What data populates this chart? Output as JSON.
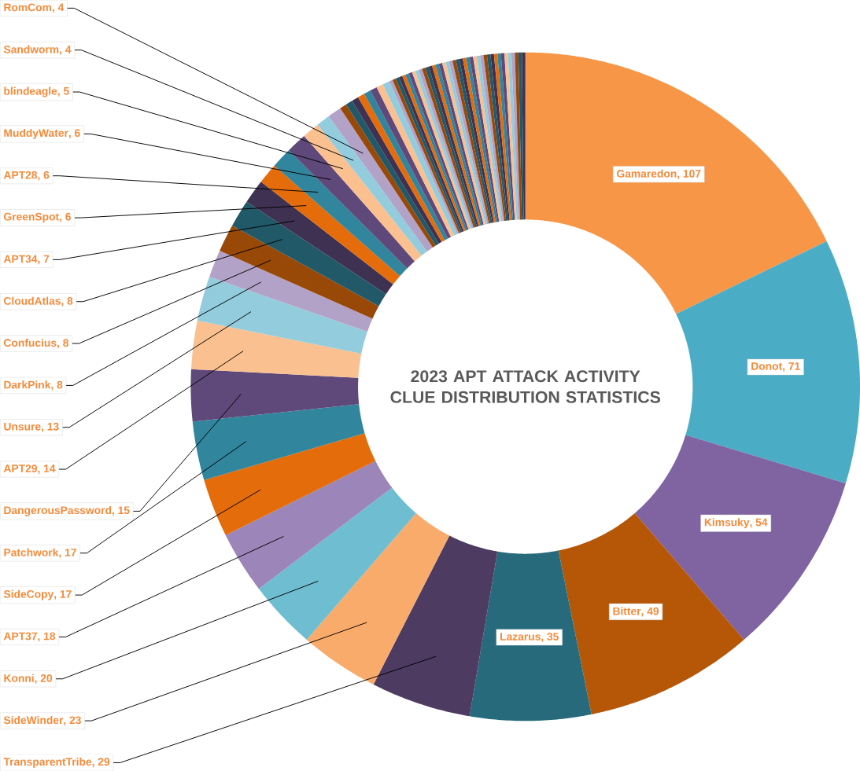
{
  "chart_data": {
    "type": "donut",
    "title": "2023 APT ATTACK ACTIVITY CLUE DISTRIBUTION STATISTICS",
    "categories": [
      "Gamaredon",
      "Donot",
      "Kimsuky",
      "Bitter",
      "Lazarus",
      "TransparentTribe",
      "SideWinder",
      "Konni",
      "APT37",
      "SideCopy",
      "Patchwork",
      "DangerousPassword",
      "APT29",
      "Unsure",
      "DarkPink",
      "Confucius",
      "CloudAtlas",
      "APT34",
      "GreenSpot",
      "APT28",
      "MuddyWater",
      "blindeagle",
      "Sandworm",
      "RomCom",
      null,
      null,
      null,
      null,
      null,
      null,
      null,
      null,
      null,
      null,
      null,
      null,
      null,
      null,
      null,
      null,
      null,
      null,
      null,
      null,
      null,
      null,
      null,
      null,
      null,
      null,
      null,
      null,
      null,
      null,
      null,
      null,
      null,
      null,
      null,
      null,
      null,
      null,
      null,
      null,
      null,
      null,
      null,
      null,
      null,
      null,
      null,
      null
    ],
    "values": [
      107,
      71,
      54,
      49,
      35,
      29,
      23,
      20,
      18,
      17,
      17,
      15,
      14,
      13,
      8,
      8,
      8,
      7,
      6,
      6,
      6,
      5,
      4,
      4,
      2,
      2,
      2,
      2,
      2,
      2,
      2,
      2,
      1,
      1,
      1,
      1,
      1,
      1,
      1,
      1,
      1,
      1,
      1,
      1,
      1,
      1,
      1,
      1,
      1,
      1,
      1,
      1,
      1,
      1,
      1,
      1,
      1,
      1,
      1,
      1,
      1,
      1,
      1,
      1,
      1,
      1,
      1,
      1,
      1,
      1,
      1,
      1
    ],
    "value_labels": [
      ", 107",
      ", 71",
      ", 54",
      ", 49",
      ", 35",
      ", 29",
      ", 23",
      ", 20",
      ", 18",
      ", 17",
      ", 17",
      ", 15",
      ", 14",
      ", 13",
      ", 8",
      ", 8",
      ", 8",
      ", 7",
      ", 6",
      ", 6",
      ", 6",
      ", 5",
      ", 4",
      ", 4",
      null,
      null,
      null,
      null,
      null,
      null,
      null,
      null,
      null,
      null,
      null,
      null,
      null,
      null,
      null,
      null,
      null,
      null,
      null,
      null,
      null,
      null,
      null,
      null,
      null,
      null,
      null,
      null,
      null,
      null,
      null,
      null,
      null,
      null,
      null,
      null,
      null,
      null,
      null,
      null,
      null,
      null,
      null,
      null,
      null,
      null,
      null,
      null
    ],
    "colors": [
      "#F79646",
      "#4BACC6",
      "#8064A2",
      "#B65708",
      "#276A7C",
      "#4D3B62",
      "#F9AB6B",
      "#6FBDD1",
      "#9C85B8",
      "#E46C0A",
      "#31859C",
      "#5F497A",
      "#FAC090",
      "#93CDDD",
      "#B3A2C7",
      "#984807",
      "#215968",
      "#3F3151",
      "#E46C0A",
      "#31859C",
      "#5F497A",
      "#FAC090",
      "#93CDDD",
      "#B3A2C7",
      "#984807",
      "#215968",
      "#3F3151",
      "#E46C0A",
      "#31859C",
      "#5F497A",
      "#FAC090",
      "#93CDDD",
      "#B3A2C7",
      "#984807",
      "#215968",
      "#3F3151",
      "#E46C0A",
      "#31859C",
      "#5F497A",
      "#FAC090",
      "#93CDDD",
      "#B3A2C7",
      "#984807",
      "#215968",
      "#3F3151",
      "#E46C0A",
      "#31859C",
      "#5F497A",
      "#FAC090",
      "#93CDDD",
      "#B3A2C7",
      "#984807",
      "#215968",
      "#3F3151",
      "#E46C0A",
      "#31859C",
      "#5F497A",
      "#FAC090",
      "#93CDDD",
      "#B3A2C7",
      "#984807",
      "#215968",
      "#3F3151",
      "#E46C0A",
      "#31859C",
      "#5F497A",
      "#FAC090",
      "#93CDDD",
      "#B3A2C7",
      "#984807",
      "#215968",
      "#3F3151"
    ]
  }
}
